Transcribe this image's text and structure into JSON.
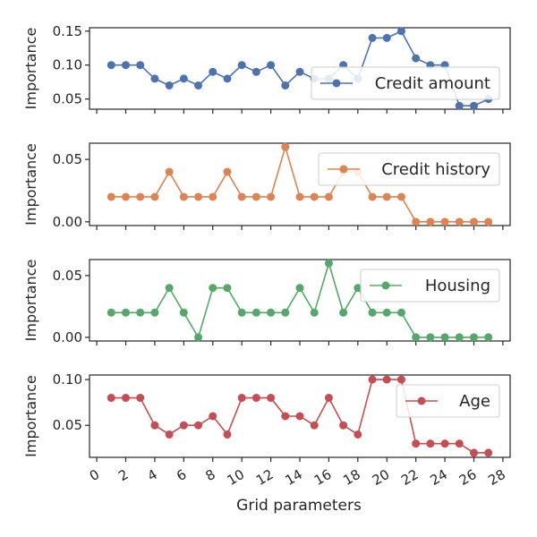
{
  "chart_data": {
    "type": "line",
    "xlabel": "Grid parameters",
    "x_ticks": [
      0,
      2,
      4,
      6,
      8,
      10,
      12,
      14,
      16,
      18,
      20,
      22,
      24,
      26,
      28
    ],
    "x_tick_labels": [
      "0",
      "2",
      "4",
      "6",
      "8",
      "10",
      "12",
      "14",
      "16",
      "18",
      "20",
      "22",
      "24",
      "26",
      "28"
    ],
    "xlim": [
      -0.5,
      28.5
    ],
    "x": [
      1,
      2,
      3,
      4,
      5,
      6,
      7,
      8,
      9,
      10,
      11,
      12,
      13,
      14,
      15,
      16,
      17,
      18,
      19,
      20,
      21,
      22,
      23,
      24,
      25,
      26,
      27
    ],
    "panels": [
      {
        "ylabel": "Importance",
        "ylim": [
          0.035,
          0.155
        ],
        "yticks": [
          0.05,
          0.1,
          0.15
        ],
        "ytick_labels": [
          "0.05",
          "0.10",
          "0.15"
        ],
        "legend_position": "right",
        "series": [
          {
            "name": "Credit amount",
            "color": "#4c72b0",
            "values": [
              0.1,
              0.1,
              0.1,
              0.08,
              0.07,
              0.08,
              0.07,
              0.09,
              0.08,
              0.1,
              0.09,
              0.1,
              0.07,
              0.09,
              0.08,
              0.08,
              0.1,
              0.08,
              0.14,
              0.14,
              0.15,
              0.11,
              0.1,
              0.1,
              0.04,
              0.04,
              0.05
            ]
          }
        ]
      },
      {
        "ylabel": "Importance",
        "ylim": [
          -0.003,
          0.063
        ],
        "yticks": [
          0.0,
          0.05
        ],
        "ytick_labels": [
          "0.00",
          "0.05"
        ],
        "legend_position": "upper right",
        "series": [
          {
            "name": "Credit history",
            "color": "#dd8452",
            "values": [
              0.02,
              0.02,
              0.02,
              0.02,
              0.04,
              0.02,
              0.02,
              0.02,
              0.04,
              0.02,
              0.02,
              0.02,
              0.06,
              0.02,
              0.02,
              0.02,
              0.04,
              0.04,
              0.02,
              0.02,
              0.02,
              0.0,
              0.0,
              0.0,
              0.0,
              0.0,
              0.0
            ]
          }
        ]
      },
      {
        "ylabel": "Importance",
        "ylim": [
          -0.003,
          0.063
        ],
        "yticks": [
          0.0,
          0.05
        ],
        "ytick_labels": [
          "0.00",
          "0.05"
        ],
        "legend_position": "upper right",
        "series": [
          {
            "name": "Housing",
            "color": "#55a868",
            "values": [
              0.02,
              0.02,
              0.02,
              0.02,
              0.04,
              0.02,
              0.0,
              0.04,
              0.04,
              0.02,
              0.02,
              0.02,
              0.02,
              0.04,
              0.02,
              0.06,
              0.02,
              0.04,
              0.02,
              0.02,
              0.02,
              0.0,
              0.0,
              0.0,
              0.0,
              0.0,
              0.0
            ]
          }
        ]
      },
      {
        "ylabel": "Importance",
        "ylim": [
          0.015,
          0.105
        ],
        "yticks": [
          0.05,
          0.1
        ],
        "ytick_labels": [
          "0.05",
          "0.10"
        ],
        "legend_position": "upper right",
        "series": [
          {
            "name": "Age",
            "color": "#c44e52",
            "values": [
              0.08,
              0.08,
              0.08,
              0.05,
              0.04,
              0.05,
              0.05,
              0.06,
              0.04,
              0.08,
              0.08,
              0.08,
              0.06,
              0.06,
              0.05,
              0.08,
              0.05,
              0.04,
              0.1,
              0.1,
              0.1,
              0.03,
              0.03,
              0.03,
              0.03,
              0.02,
              0.02
            ]
          }
        ]
      }
    ]
  }
}
